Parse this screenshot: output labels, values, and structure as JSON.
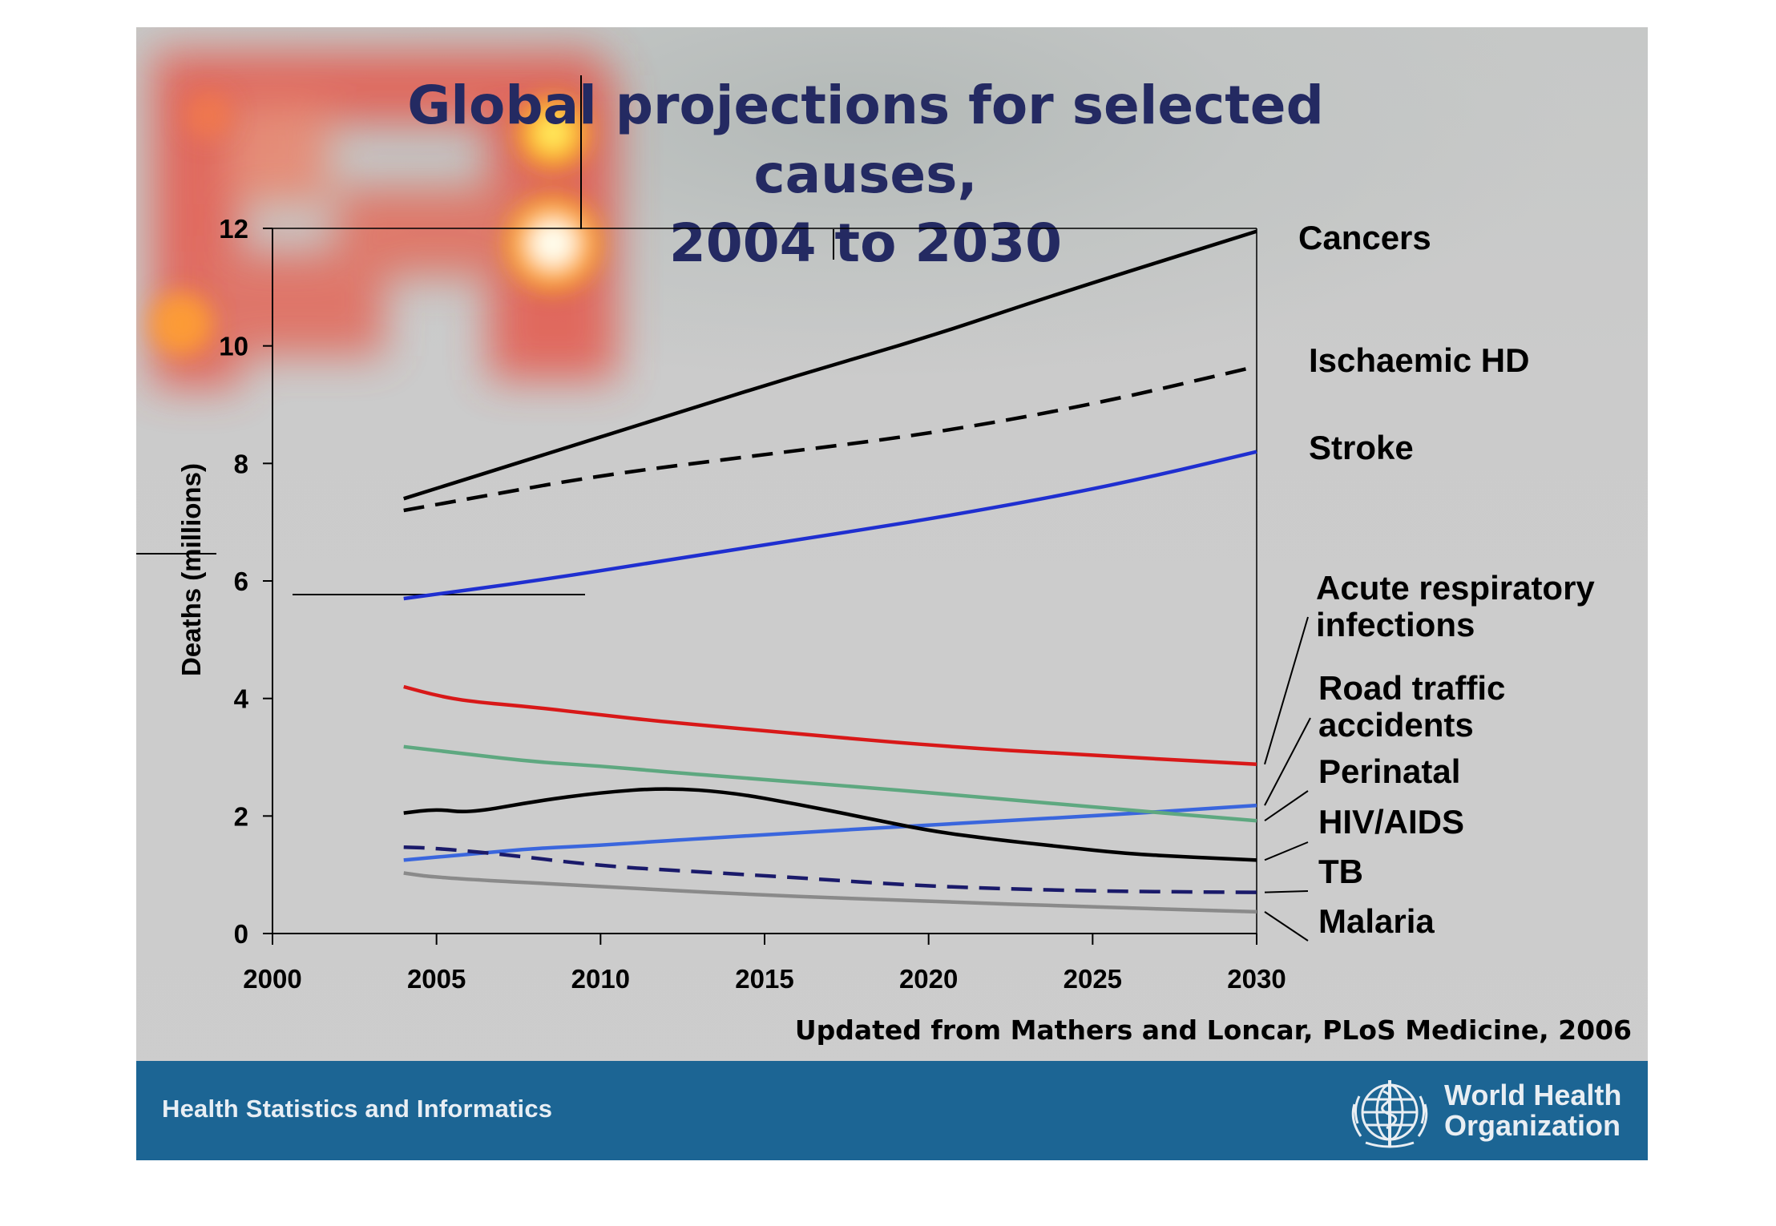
{
  "slide": {
    "title_line1": "Global projections for selected causes,",
    "title_line2": "2004 to 2030",
    "source": "Updated from Mathers and Loncar, PLoS Medicine, 2006",
    "footer_label": "Health Statistics and Informatics",
    "org_name_line1": "World Health",
    "org_name_line2": "Organization",
    "colors": {
      "title": "#242a62",
      "footer_bar": "#1c6594",
      "cancers": "#000000",
      "ischaemic_hd": "#000000",
      "stroke": "#1f2fd0",
      "acute_respiratory": "#d81818",
      "road_traffic": "#3a66dd",
      "perinatal": "#5ea880",
      "hiv_aids": "#000000",
      "tb": "#1a1a6a",
      "malaria": "#8a8a8a"
    }
  },
  "chart_data": {
    "type": "line",
    "title": "",
    "xlabel": "",
    "ylabel": "Deaths (millions)",
    "xlim": [
      2000,
      2030
    ],
    "ylim": [
      0,
      12
    ],
    "x_ticks": [
      "2000",
      "2005",
      "2010",
      "2015",
      "2020",
      "2025",
      "2030"
    ],
    "y_ticks": [
      "0",
      "2",
      "4",
      "6",
      "8",
      "10",
      "12"
    ],
    "grid": false,
    "legend": "right-side labels",
    "series": [
      {
        "name": "Cancers",
        "style": "solid",
        "label_lines": [
          "Cancers"
        ],
        "x": [
          2004,
          2008,
          2012,
          2016,
          2020,
          2024,
          2030
        ],
        "y": [
          7.4,
          8.1,
          8.8,
          9.5,
          10.15,
          10.9,
          11.95
        ]
      },
      {
        "name": "Ischaemic HD",
        "style": "dashed",
        "label_lines": [
          "Ischaemic HD"
        ],
        "x": [
          2004,
          2006,
          2010,
          2015,
          2020,
          2025,
          2030
        ],
        "y": [
          7.2,
          7.4,
          7.8,
          8.15,
          8.5,
          9.0,
          9.65
        ]
      },
      {
        "name": "Stroke",
        "style": "solid",
        "label_lines": [
          "Stroke"
        ],
        "x": [
          2004,
          2008,
          2012,
          2016,
          2020,
          2024,
          2027,
          2030
        ],
        "y": [
          5.7,
          6.0,
          6.35,
          6.7,
          7.05,
          7.45,
          7.8,
          8.2
        ]
      },
      {
        "name": "Acute respiratory infections",
        "style": "solid",
        "label_lines": [
          "Acute respiratory",
          "infections"
        ],
        "x": [
          2004,
          2005,
          2006,
          2008,
          2010,
          2012,
          2015,
          2020,
          2025,
          2030
        ],
        "y": [
          4.2,
          4.05,
          3.95,
          3.85,
          3.72,
          3.6,
          3.45,
          3.2,
          3.03,
          2.88
        ]
      },
      {
        "name": "Road traffic accidents",
        "style": "solid",
        "label_lines": [
          "Road traffic",
          "accidents"
        ],
        "x": [
          2004,
          2006,
          2008,
          2010,
          2012,
          2015,
          2020,
          2025,
          2030
        ],
        "y": [
          1.25,
          1.35,
          1.45,
          1.5,
          1.58,
          1.68,
          1.85,
          2.0,
          2.18
        ]
      },
      {
        "name": "Perinatal",
        "style": "solid",
        "label_lines": [
          "Perinatal"
        ],
        "x": [
          2004,
          2006,
          2008,
          2010,
          2012,
          2015,
          2020,
          2025,
          2030
        ],
        "y": [
          3.18,
          3.05,
          2.92,
          2.85,
          2.75,
          2.62,
          2.4,
          2.15,
          1.92
        ]
      },
      {
        "name": "HIV/AIDS",
        "style": "solid",
        "label_lines": [
          "HIV/AIDS"
        ],
        "x": [
          2004,
          2005,
          2006,
          2008,
          2010,
          2012,
          2014,
          2016,
          2018,
          2020,
          2022,
          2024,
          2026,
          2028,
          2030
        ],
        "y": [
          2.05,
          2.12,
          2.05,
          2.25,
          2.4,
          2.48,
          2.4,
          2.2,
          1.98,
          1.75,
          1.6,
          1.48,
          1.36,
          1.3,
          1.25
        ]
      },
      {
        "name": "TB",
        "style": "dashed",
        "label_lines": [
          "TB"
        ],
        "x": [
          2004,
          2005,
          2007,
          2010,
          2013,
          2016,
          2020,
          2025,
          2030
        ],
        "y": [
          1.47,
          1.45,
          1.35,
          1.15,
          1.05,
          0.95,
          0.8,
          0.72,
          0.7
        ]
      },
      {
        "name": "Malaria",
        "style": "solid",
        "label_lines": [
          "Malaria"
        ],
        "x": [
          2004,
          2005,
          2010,
          2015,
          2020,
          2025,
          2030
        ],
        "y": [
          1.03,
          0.95,
          0.8,
          0.65,
          0.55,
          0.45,
          0.37
        ]
      }
    ]
  }
}
